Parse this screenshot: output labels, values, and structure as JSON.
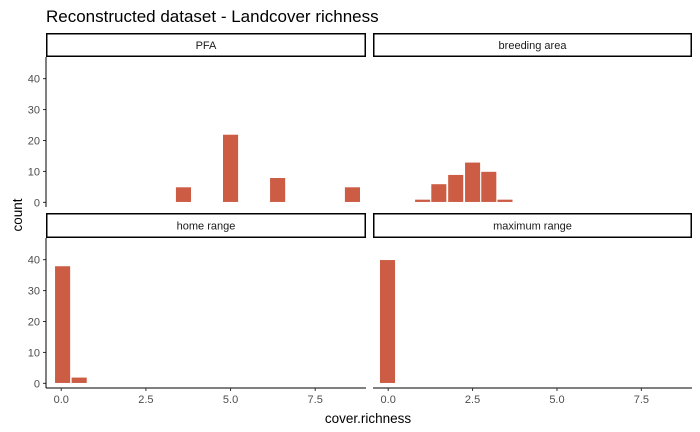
{
  "chart_data": {
    "type": "bar",
    "title": "Reconstructed dataset - Landcover richness",
    "xlabel": "cover.richness",
    "ylabel": "count",
    "xlim": [
      -0.45,
      9.0
    ],
    "x_ticks": [
      0,
      2.5,
      5,
      7.5
    ],
    "x_tick_labels": [
      "0.0",
      "2.5",
      "5.0",
      "7.5"
    ],
    "bar_color": "#CD5C45",
    "strip_fill": "#ffffff",
    "panels": [
      {
        "name": "PFA",
        "ylim": [
          -1.5,
          47
        ],
        "y_ticks": [
          0,
          10,
          20,
          30,
          40
        ],
        "bars": [
          {
            "x": 3.61,
            "count": 5
          },
          {
            "x": 5.0,
            "count": 22
          },
          {
            "x": 6.39,
            "count": 8
          },
          {
            "x": 8.6,
            "count": 5
          }
        ]
      },
      {
        "name": "breeding area",
        "ylim": [
          -1.5,
          47
        ],
        "y_ticks": [
          0,
          10,
          20,
          30,
          40
        ],
        "bars": [
          {
            "x": 1.02,
            "count": 1
          },
          {
            "x": 1.5,
            "count": 6
          },
          {
            "x": 2.0,
            "count": 9
          },
          {
            "x": 2.5,
            "count": 13
          },
          {
            "x": 2.98,
            "count": 10
          },
          {
            "x": 3.46,
            "count": 1
          }
        ]
      },
      {
        "name": "home range",
        "ylim": [
          -1.5,
          47
        ],
        "y_ticks": [
          0,
          10,
          20,
          30,
          40
        ],
        "bars": [
          {
            "x": 0.04,
            "count": 38
          },
          {
            "x": 0.53,
            "count": 2
          }
        ]
      },
      {
        "name": "maximum range",
        "ylim": [
          -1.5,
          47
        ],
        "y_ticks": [
          0,
          10,
          20,
          30,
          40
        ],
        "bars": [
          {
            "x": -0.02,
            "count": 40
          }
        ]
      }
    ]
  }
}
